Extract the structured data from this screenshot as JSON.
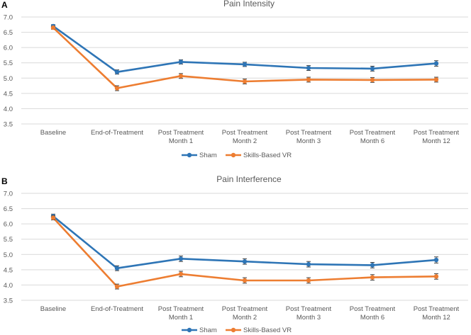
{
  "chart_data": [
    {
      "panel": "A",
      "type": "line",
      "title": "Pain Intensity",
      "categories": [
        [
          "Baseline"
        ],
        [
          "End-of-Treatment"
        ],
        [
          "Post Treatment",
          "Month 1"
        ],
        [
          "Post Treatment",
          "Month 2"
        ],
        [
          "Post Treatment",
          "Month 3"
        ],
        [
          "Post Treatment",
          "Month 6"
        ],
        [
          "Post Treatment",
          "Month 12"
        ]
      ],
      "ylim": [
        3.5,
        7.0
      ],
      "yticks": [
        "3.5",
        "4.0",
        "4.5",
        "5.0",
        "5.5",
        "6.0",
        "6.5",
        "7.0"
      ],
      "grid": true,
      "legend": "bottom",
      "series": [
        {
          "name": "Sham",
          "color": "#2e75b6",
          "values": [
            6.7,
            5.2,
            5.53,
            5.45,
            5.33,
            5.31,
            5.48
          ],
          "errors": [
            0.05,
            0.07,
            0.07,
            0.07,
            0.08,
            0.08,
            0.09
          ]
        },
        {
          "name": "Skills-Based VR",
          "color": "#ed7d31",
          "values": [
            6.65,
            4.67,
            5.07,
            4.89,
            4.95,
            4.94,
            4.95
          ],
          "errors": [
            0.05,
            0.08,
            0.08,
            0.08,
            0.08,
            0.08,
            0.08
          ]
        }
      ]
    },
    {
      "panel": "B",
      "type": "line",
      "title": "Pain Interference",
      "categories": [
        [
          "Baseline"
        ],
        [
          "End-of-Treatment"
        ],
        [
          "Post Treatment",
          "Month 1"
        ],
        [
          "Post Treatment",
          "Month 2"
        ],
        [
          "Post Treatment",
          "Month 3"
        ],
        [
          "Post Treatment",
          "Month 6"
        ],
        [
          "Post Treatment",
          "Month 12"
        ]
      ],
      "ylim": [
        3.5,
        7.0
      ],
      "yticks": [
        "3.5",
        "4.0",
        "4.5",
        "5.0",
        "5.5",
        "6.0",
        "6.5",
        "7.0"
      ],
      "grid": true,
      "legend": "bottom",
      "series": [
        {
          "name": "Sham",
          "color": "#2e75b6",
          "values": [
            6.25,
            4.55,
            4.86,
            4.77,
            4.68,
            4.65,
            4.82
          ],
          "errors": [
            0.07,
            0.08,
            0.09,
            0.09,
            0.09,
            0.09,
            0.1
          ]
        },
        {
          "name": "Skills-Based VR",
          "color": "#ed7d31",
          "values": [
            6.2,
            3.95,
            4.36,
            4.15,
            4.15,
            4.25,
            4.28
          ],
          "errors": [
            0.07,
            0.08,
            0.09,
            0.09,
            0.09,
            0.09,
            0.09
          ]
        }
      ]
    }
  ]
}
